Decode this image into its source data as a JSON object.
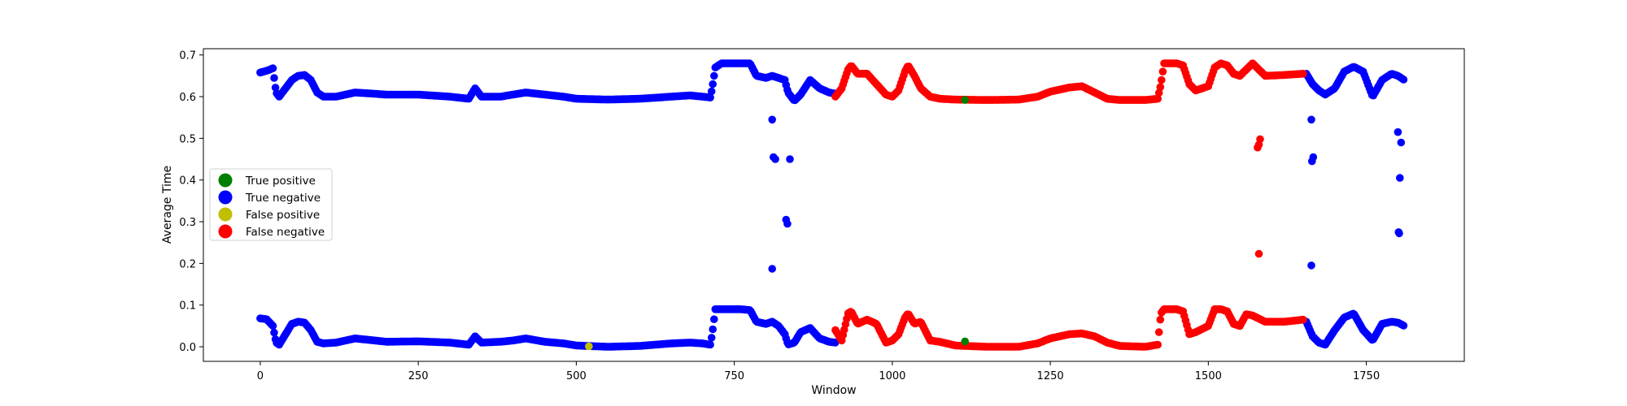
{
  "chart_data": {
    "type": "scatter",
    "title": "",
    "xlabel": "Window",
    "ylabel": "Average Time",
    "xlim": [
      -90,
      1905
    ],
    "ylim": [
      -0.035,
      0.715
    ],
    "xticks": [
      0,
      250,
      500,
      750,
      1000,
      1250,
      1500,
      1750
    ],
    "xtick_labels": [
      "0",
      "250",
      "500",
      "750",
      "1000",
      "1250",
      "1500",
      "1750"
    ],
    "yticks": [
      0.0,
      0.1,
      0.2,
      0.3,
      0.4,
      0.5,
      0.6,
      0.7
    ],
    "ytick_labels": [
      "0.0",
      "0.1",
      "0.2",
      "0.3",
      "0.4",
      "0.5",
      "0.6",
      "0.7"
    ],
    "grid": false,
    "legend_position": "center-left",
    "series": [
      {
        "name": "True positive",
        "color": "#008000",
        "points": [
          [
            1115,
            0.013
          ],
          [
            1115,
            0.592
          ]
        ]
      },
      {
        "name": "True negative",
        "color": "#0000ff",
        "segments": [
          {
            "band": "high",
            "x": [
              0,
              10,
              20,
              25,
              30,
              40,
              50,
              60,
              70,
              80,
              90,
              100,
              120,
              150,
              200,
              250,
              300,
              330,
              340,
              350,
              380,
              400,
              420,
              450,
              480,
              500,
              550,
              600,
              650,
              680,
              700,
              712,
              715,
              720,
              730,
              740,
              760,
              775,
              785,
              800,
              810,
              820,
              830,
              835,
              845,
              855,
              870,
              885,
              900,
              910
            ],
            "y": [
              0.658,
              0.662,
              0.668,
              0.61,
              0.6,
              0.62,
              0.64,
              0.65,
              0.652,
              0.64,
              0.61,
              0.6,
              0.6,
              0.61,
              0.605,
              0.605,
              0.6,
              0.595,
              0.62,
              0.6,
              0.6,
              0.605,
              0.61,
              0.605,
              0.6,
              0.595,
              0.593,
              0.595,
              0.6,
              0.603,
              0.6,
              0.598,
              0.62,
              0.67,
              0.68,
              0.68,
              0.68,
              0.68,
              0.65,
              0.645,
              0.65,
              0.645,
              0.64,
              0.61,
              0.59,
              0.605,
              0.64,
              0.62,
              0.61,
              0.607
            ]
          },
          {
            "band": "high",
            "x": [
              1655,
              1665,
              1675,
              1685,
              1700,
              1715,
              1730,
              1745,
              1760,
              1775,
              1790,
              1800,
              1810
            ],
            "y": [
              0.655,
              0.63,
              0.615,
              0.605,
              0.62,
              0.66,
              0.672,
              0.66,
              0.6,
              0.64,
              0.655,
              0.65,
              0.64
            ]
          },
          {
            "band": "low",
            "x": [
              0,
              10,
              20,
              25,
              30,
              40,
              50,
              60,
              70,
              80,
              90,
              100,
              120,
              150,
              200,
              250,
              300,
              330,
              340,
              350,
              380,
              400,
              420,
              450,
              480,
              500,
              550,
              600,
              650,
              680,
              700,
              712,
              715,
              720,
              730,
              740,
              760,
              775,
              785,
              800,
              810,
              820,
              830,
              835,
              845,
              855,
              870,
              885,
              900,
              910
            ],
            "y": [
              0.068,
              0.066,
              0.05,
              0.01,
              0.005,
              0.03,
              0.055,
              0.06,
              0.058,
              0.04,
              0.012,
              0.008,
              0.01,
              0.02,
              0.012,
              0.013,
              0.01,
              0.005,
              0.025,
              0.01,
              0.012,
              0.015,
              0.02,
              0.012,
              0.008,
              0.003,
              0.0,
              0.002,
              0.008,
              0.01,
              0.008,
              0.005,
              0.03,
              0.09,
              0.09,
              0.09,
              0.09,
              0.088,
              0.06,
              0.055,
              0.06,
              0.05,
              0.03,
              0.005,
              0.01,
              0.035,
              0.045,
              0.02,
              0.012,
              0.01
            ]
          },
          {
            "band": "low",
            "x": [
              1655,
              1665,
              1675,
              1685,
              1700,
              1715,
              1730,
              1745,
              1760,
              1775,
              1790,
              1800,
              1810
            ],
            "y": [
              0.06,
              0.025,
              0.01,
              0.005,
              0.04,
              0.07,
              0.08,
              0.04,
              0.015,
              0.055,
              0.06,
              0.058,
              0.05
            ]
          }
        ],
        "points": [
          [
            810,
            0.545
          ],
          [
            812,
            0.455
          ],
          [
            815,
            0.45
          ],
          [
            838,
            0.45
          ],
          [
            832,
            0.305
          ],
          [
            834,
            0.295
          ],
          [
            810,
            0.187
          ],
          [
            1663,
            0.545
          ],
          [
            1666,
            0.455
          ],
          [
            1664,
            0.445
          ],
          [
            1663,
            0.195
          ],
          [
            1800,
            0.515
          ],
          [
            1805,
            0.49
          ],
          [
            1803,
            0.405
          ],
          [
            1801,
            0.275
          ],
          [
            1802,
            0.272
          ]
        ]
      },
      {
        "name": "False positive",
        "color": "#bfbf00",
        "points": [
          [
            520,
            0.001
          ]
        ]
      },
      {
        "name": "False negative",
        "color": "#ff0000",
        "segments": [
          {
            "band": "high",
            "x": [
              910,
              920,
              930,
              935,
              945,
              960,
              975,
              990,
              1000,
              1010,
              1020,
              1025,
              1035,
              1045,
              1060,
              1075,
              1100,
              1150,
              1200,
              1230,
              1250,
              1280,
              1300,
              1320,
              1340,
              1360,
              1400,
              1420,
              1425,
              1430,
              1440,
              1450,
              1460,
              1470,
              1480,
              1500,
              1510,
              1520,
              1530,
              1540,
              1550,
              1560,
              1570,
              1590,
              1620,
              1650
            ],
            "y": [
              0.6,
              0.62,
              0.665,
              0.675,
              0.655,
              0.655,
              0.63,
              0.605,
              0.6,
              0.615,
              0.66,
              0.675,
              0.65,
              0.62,
              0.6,
              0.595,
              0.593,
              0.592,
              0.593,
              0.6,
              0.612,
              0.622,
              0.625,
              0.61,
              0.595,
              0.592,
              0.592,
              0.595,
              0.63,
              0.68,
              0.68,
              0.68,
              0.675,
              0.63,
              0.615,
              0.625,
              0.67,
              0.68,
              0.675,
              0.655,
              0.65,
              0.665,
              0.68,
              0.65,
              0.652,
              0.655
            ]
          },
          {
            "band": "low",
            "x": [
              910,
              920,
              930,
              935,
              945,
              960,
              975,
              990,
              1000,
              1010,
              1020,
              1025,
              1035,
              1045,
              1060,
              1075,
              1100,
              1150,
              1200,
              1230,
              1250,
              1280,
              1300,
              1320,
              1340,
              1360,
              1400,
              1420,
              1425,
              1430,
              1440,
              1450,
              1460,
              1470,
              1480,
              1500,
              1510,
              1520,
              1530,
              1540,
              1550,
              1560,
              1570,
              1590,
              1620,
              1650
            ],
            "y": [
              0.04,
              0.015,
              0.08,
              0.085,
              0.055,
              0.065,
              0.055,
              0.01,
              0.015,
              0.03,
              0.07,
              0.08,
              0.055,
              0.06,
              0.015,
              0.012,
              0.003,
              0.0,
              0.0,
              0.008,
              0.02,
              0.03,
              0.032,
              0.025,
              0.01,
              0.002,
              0.0,
              0.005,
              0.08,
              0.09,
              0.09,
              0.09,
              0.085,
              0.03,
              0.035,
              0.05,
              0.09,
              0.09,
              0.085,
              0.055,
              0.05,
              0.078,
              0.075,
              0.06,
              0.06,
              0.065
            ]
          }
        ],
        "points": [
          [
            1578,
            0.478
          ],
          [
            1580,
            0.485
          ],
          [
            1582,
            0.498
          ],
          [
            1580,
            0.223
          ]
        ]
      }
    ]
  }
}
